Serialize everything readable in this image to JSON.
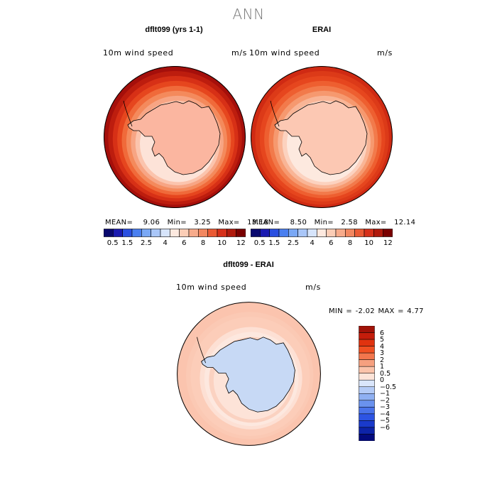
{
  "title": "ANN",
  "panels": [
    {
      "title": "dflt099 (yrs 1-1)",
      "variable": "10m wind speed",
      "units": "m/s",
      "stats": {
        "mean_label": "MEAN=",
        "mean": "9.06",
        "min_label": "Min=",
        "min": "3.25",
        "max_label": "Max=",
        "max": "13.18"
      },
      "interior_color": "#fbb6a0",
      "ring_colors": [
        "#a50f0b",
        "#bd1d0e",
        "#d73016",
        "#e6461e",
        "#f06a3a",
        "#f48a5c",
        "#f7a584",
        "#fbc4ad",
        "#fde3d8"
      ]
    },
    {
      "title": "ERAI",
      "variable": "10m wind speed",
      "units": "m/s",
      "stats": {
        "mean_label": "MEAN=",
        "mean": "8.50",
        "min_label": "Min=",
        "min": "2.58",
        "max_label": "Max=",
        "max": "12.14"
      },
      "interior_color": "#fcc8b3",
      "ring_colors": [
        "#cf2a13",
        "#dc3a18",
        "#e6461e",
        "#ee5f30",
        "#f27a4b",
        "#f6996f",
        "#f9b596",
        "#fcd2bf",
        "#fde9df"
      ]
    },
    {
      "title": "dflt099 - ERAI",
      "variable": "10m wind speed",
      "units": "m/s",
      "stats_text": "MIN =  -2.02 MAX =   4.77",
      "interior_color": "#c7d9f5",
      "ring_colors": [
        "#fbc4ae",
        "#fbc4ae",
        "#fbc9b4",
        "#fccdb9",
        "#fccdb9",
        "#fde0d4",
        "#fde8df",
        "#fbd2c1",
        "#fde3d8"
      ]
    }
  ],
  "colorbar_abs": {
    "colors": [
      "#08086e",
      "#1a1ab0",
      "#2a4fe0",
      "#4a7ff0",
      "#7aa8f5",
      "#a9c6f8",
      "#d6e4fb",
      "#fde9df",
      "#fbcdb6",
      "#f7ab8b",
      "#f28760",
      "#ea5a34",
      "#d6301a",
      "#b01a0d",
      "#7a0000"
    ],
    "labels": [
      "0.5",
      "1.5",
      "2.5",
      "4",
      "6",
      "8",
      "10",
      "12"
    ]
  },
  "colorbar_diff": {
    "colors_top_to_bottom": [
      "#a11208",
      "#c41d0b",
      "#e0330f",
      "#f05022",
      "#f2764d",
      "#f6a07f",
      "#fbc3aa",
      "#fde4d8",
      "#dae6fb",
      "#b4cbf6",
      "#8fb0f2",
      "#6a92ee",
      "#4a73ea",
      "#2d54e3",
      "#1a3acb",
      "#0d23a8",
      "#030a7d"
    ],
    "labels": [
      "6",
      "5",
      "4",
      "3",
      "2",
      "1",
      "0.5",
      "0",
      "−0.5",
      "−1",
      "−2",
      "−3",
      "−4",
      "−5",
      "−6"
    ]
  }
}
